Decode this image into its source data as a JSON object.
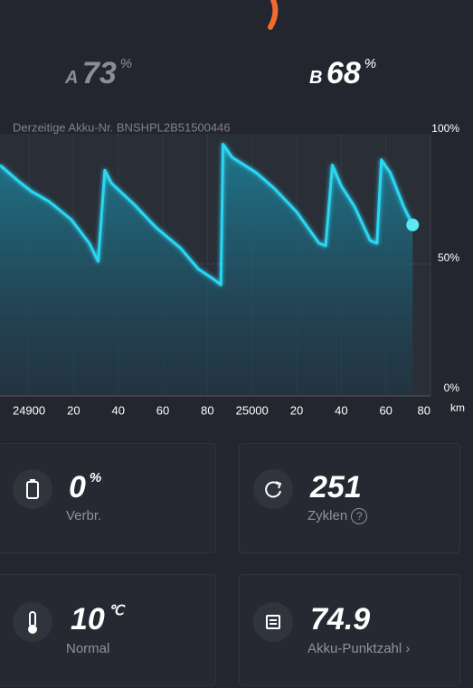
{
  "battery_a": {
    "label": "A",
    "value": 73,
    "unit": "%"
  },
  "battery_b": {
    "label": "B",
    "value": 68,
    "unit": "%"
  },
  "chart_data": {
    "type": "area",
    "subtitle": "Derzeitige Akku-Nr. BNSHPL2B51500446",
    "x": [
      24887,
      24895,
      24901,
      24909,
      24919,
      24927,
      24931,
      24934,
      24937,
      24947,
      24957,
      24968,
      24976,
      24983,
      24986,
      24987,
      24991,
      25002,
      25010,
      25020,
      25030,
      25033,
      25036,
      25040,
      25046,
      25053,
      25056,
      25058,
      25062,
      25068,
      25072
    ],
    "values": [
      88,
      82,
      78,
      74,
      67,
      58,
      51,
      86,
      81,
      73,
      64,
      56,
      48,
      44,
      42,
      96,
      91,
      85,
      79,
      70,
      58,
      57,
      88,
      80,
      72,
      59,
      58,
      90,
      85,
      72,
      65
    ],
    "color": "#2ad6f2",
    "xlim": [
      24887,
      25080
    ],
    "ylim": [
      0,
      100
    ],
    "xticks": [
      {
        "value": 24900,
        "label": "24900"
      },
      {
        "value": 24920,
        "label": "20"
      },
      {
        "value": 24940,
        "label": "40"
      },
      {
        "value": 24960,
        "label": "60"
      },
      {
        "value": 24980,
        "label": "80"
      },
      {
        "value": 25000,
        "label": "25000"
      },
      {
        "value": 25020,
        "label": "20"
      },
      {
        "value": 25040,
        "label": "40"
      },
      {
        "value": 25060,
        "label": "60"
      },
      {
        "value": 25080,
        "label": "80"
      }
    ],
    "yticks": [
      {
        "value": 0,
        "label": "0%"
      },
      {
        "value": 50,
        "label": "50%"
      },
      {
        "value": 100,
        "label": "100%"
      }
    ],
    "xlabel": "km",
    "grid": true
  },
  "stats": [
    {
      "value": 0,
      "unit": "%",
      "label": "Verbr."
    },
    {
      "value": 251,
      "label": "Zyklen"
    },
    {
      "value": 10,
      "unit": "℃",
      "label": "Normal"
    },
    {
      "value": 74.9,
      "label": "Akku-Punktzahl"
    }
  ]
}
